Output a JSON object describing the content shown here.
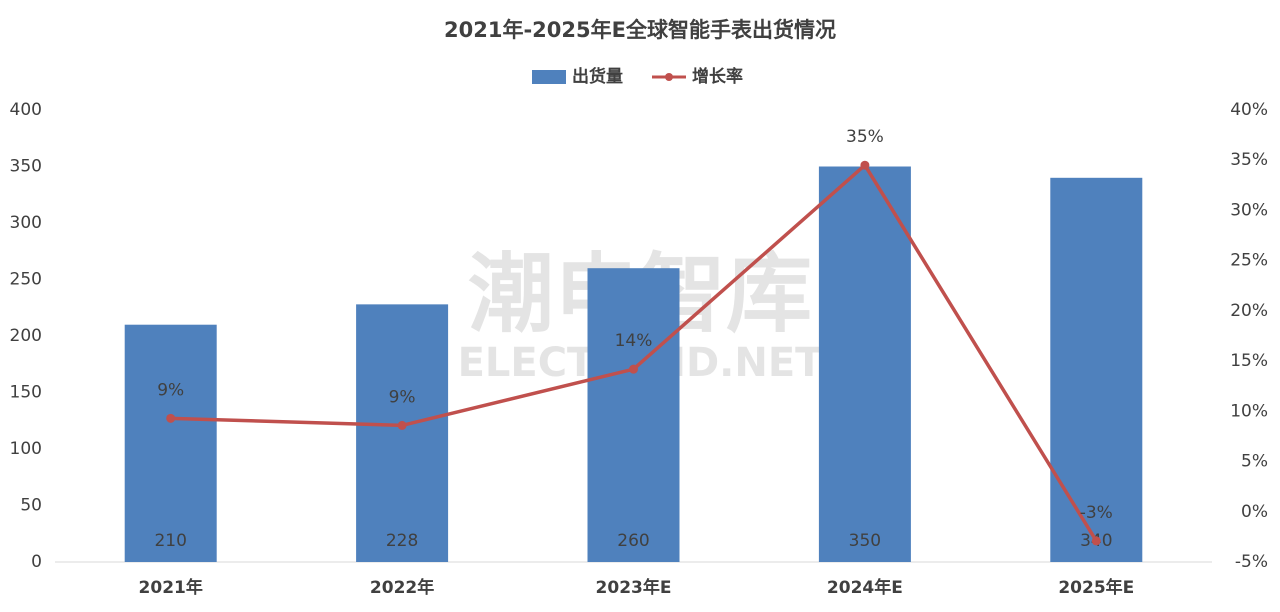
{
  "chart_data": {
    "type": "bar-line",
    "title": "2021年-2025年E全球智能手表出货情况",
    "watermark": {
      "title": "潮电智库",
      "subtitle": "ELECTREND.NET"
    },
    "categories": [
      "2021年",
      "2022年",
      "2023年E",
      "2024年E",
      "2025年E"
    ],
    "series": [
      {
        "name": "出货量",
        "type": "bar",
        "color": "#4f81bd",
        "values": [
          210,
          228,
          260,
          350,
          340
        ]
      },
      {
        "name": "增长率",
        "type": "line",
        "axis": "y2",
        "color": "#c0504d",
        "values": [
          9.3,
          8.6,
          14.2,
          34.5,
          -2.9
        ],
        "value_labels": [
          "9%",
          "9%",
          "14%",
          "35%",
          "-3%"
        ]
      }
    ],
    "ylim": [
      0,
      400
    ],
    "yticks": [
      0,
      50,
      100,
      150,
      200,
      250,
      300,
      350,
      400
    ],
    "y2lim": [
      -5,
      40
    ],
    "y2ticks": [
      {
        "value": -5,
        "label": "-5%"
      },
      {
        "value": 0,
        "label": "0%"
      },
      {
        "value": 5,
        "label": "5%"
      },
      {
        "value": 10,
        "label": "10%"
      },
      {
        "value": 15,
        "label": "15%"
      },
      {
        "value": 20,
        "label": "20%"
      },
      {
        "value": 25,
        "label": "25%"
      },
      {
        "value": 30,
        "label": "30%"
      },
      {
        "value": 35,
        "label": "35%"
      },
      {
        "value": 40,
        "label": "40%"
      }
    ],
    "grid": false,
    "legend": "top"
  }
}
